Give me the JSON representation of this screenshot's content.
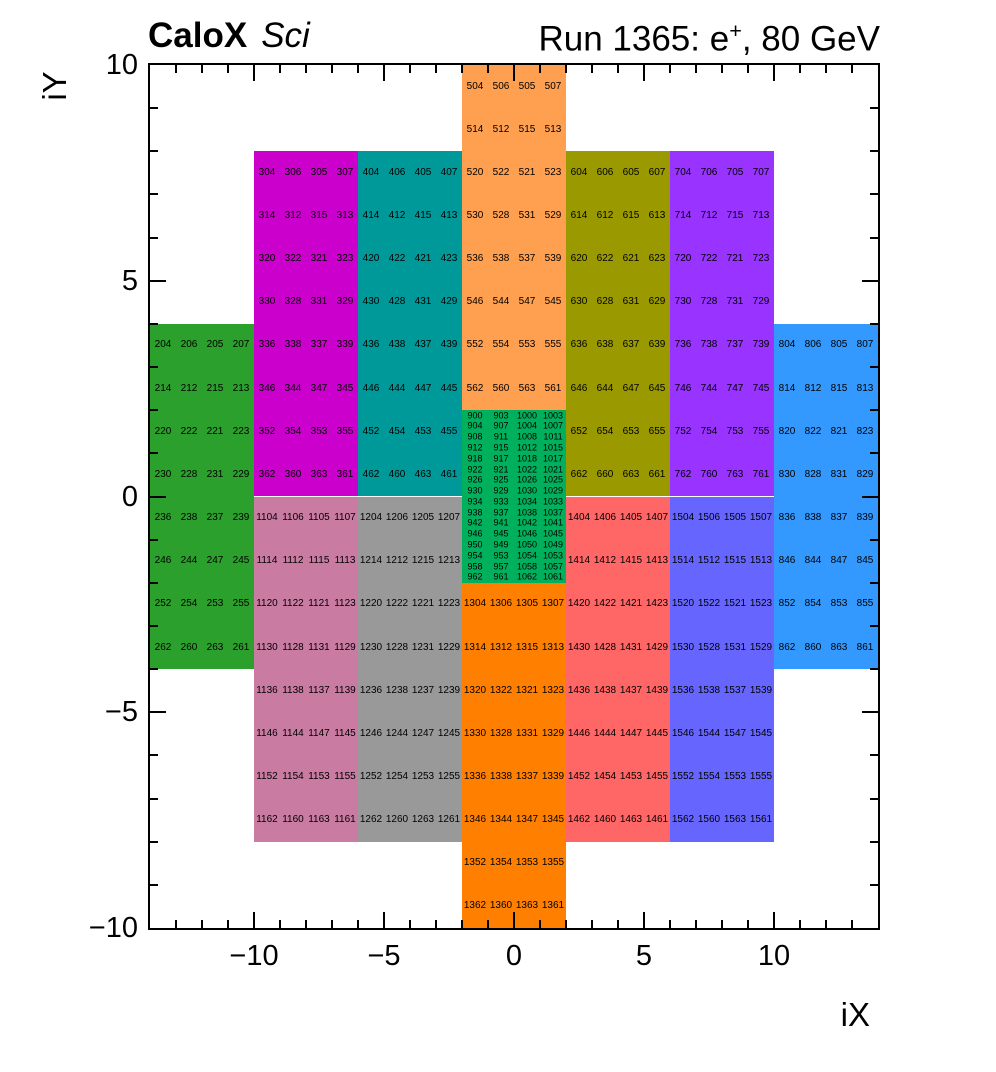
{
  "header": {
    "brand": "CaloX",
    "brand_sub": "Sci",
    "run": {
      "prefix": "Run 1365: e",
      "sup": "+",
      "suffix": ", 80 GeV"
    }
  },
  "chart_data": {
    "type": "heatmap",
    "title": "CaloX Sci — Run 1365: e+, 80 GeV",
    "description": "Calorimeter channel map: colored readout modules on an iX/iY grid, each cell labeled with its channel number",
    "grid": false,
    "x_axis": {
      "title": "iX",
      "range": [
        -14,
        14
      ],
      "major_ticks": [
        -10,
        -5,
        0,
        5,
        10
      ],
      "major_labels": [
        "−10",
        "−5",
        "0",
        "5",
        "10"
      ],
      "minor_step": 1
    },
    "y_axis": {
      "title": "iY",
      "range": [
        -10,
        10
      ],
      "major_ticks": [
        10,
        5,
        0,
        -5,
        -10
      ],
      "major_labels": [
        "10",
        "5",
        "0",
        "−5",
        "−10"
      ],
      "minor_step": 1
    },
    "frame_color": "#000000",
    "modules": [
      {
        "id": "sci-200-green-left",
        "color": "#2ca02c",
        "x": [
          -14,
          -10
        ],
        "y": [
          -4,
          4
        ],
        "cell_rows": [
          [
            "204",
            "206",
            "205",
            "207"
          ],
          [
            "214",
            "212",
            "215",
            "213"
          ],
          [
            "220",
            "222",
            "221",
            "223"
          ],
          [
            "230",
            "228",
            "231",
            "229"
          ],
          [
            "236",
            "238",
            "237",
            "239"
          ],
          [
            "246",
            "244",
            "247",
            "245"
          ],
          [
            "252",
            "254",
            "253",
            "255"
          ],
          [
            "262",
            "260",
            "263",
            "261"
          ]
        ]
      },
      {
        "id": "sci-300-magenta",
        "color": "#cc00cc",
        "x": [
          -10,
          -6
        ],
        "y": [
          0,
          8
        ],
        "cell_rows": [
          [
            "304",
            "306",
            "305",
            "307"
          ],
          [
            "314",
            "312",
            "315",
            "313"
          ],
          [
            "320",
            "322",
            "321",
            "323"
          ],
          [
            "330",
            "328",
            "331",
            "329"
          ],
          [
            "336",
            "338",
            "337",
            "339"
          ],
          [
            "346",
            "344",
            "347",
            "345"
          ],
          [
            "352",
            "354",
            "353",
            "355"
          ],
          [
            "362",
            "360",
            "363",
            "361"
          ]
        ]
      },
      {
        "id": "sci-400-teal",
        "color": "#009999",
        "x": [
          -6,
          -2
        ],
        "y": [
          0,
          8
        ],
        "cell_rows": [
          [
            "404",
            "406",
            "405",
            "407"
          ],
          [
            "414",
            "412",
            "415",
            "413"
          ],
          [
            "420",
            "422",
            "421",
            "423"
          ],
          [
            "430",
            "428",
            "431",
            "429"
          ],
          [
            "436",
            "438",
            "437",
            "439"
          ],
          [
            "446",
            "444",
            "447",
            "445"
          ],
          [
            "452",
            "454",
            "453",
            "455"
          ],
          [
            "462",
            "460",
            "463",
            "461"
          ]
        ]
      },
      {
        "id": "sci-500-orange-top",
        "color": "#ffa050",
        "x": [
          -2,
          2
        ],
        "y": [
          2,
          10
        ],
        "cell_rows": [
          [
            "504",
            "506",
            "505",
            "507"
          ],
          [
            "514",
            "512",
            "515",
            "513"
          ],
          [
            "520",
            "522",
            "521",
            "523"
          ],
          [
            "530",
            "528",
            "531",
            "529"
          ],
          [
            "536",
            "538",
            "537",
            "539"
          ],
          [
            "546",
            "544",
            "547",
            "545"
          ],
          [
            "552",
            "554",
            "553",
            "555"
          ],
          [
            "562",
            "560",
            "563",
            "561"
          ]
        ]
      },
      {
        "id": "sci-600-olive",
        "color": "#9a9a00",
        "x": [
          2,
          6
        ],
        "y": [
          0,
          8
        ],
        "cell_rows": [
          [
            "604",
            "606",
            "605",
            "607"
          ],
          [
            "614",
            "612",
            "615",
            "613"
          ],
          [
            "620",
            "622",
            "621",
            "623"
          ],
          [
            "630",
            "628",
            "631",
            "629"
          ],
          [
            "636",
            "638",
            "637",
            "639"
          ],
          [
            "646",
            "644",
            "647",
            "645"
          ],
          [
            "652",
            "654",
            "653",
            "655"
          ],
          [
            "662",
            "660",
            "663",
            "661"
          ]
        ]
      },
      {
        "id": "sci-700-violet",
        "color": "#9933ff",
        "x": [
          6,
          10
        ],
        "y": [
          0,
          8
        ],
        "cell_rows": [
          [
            "704",
            "706",
            "705",
            "707"
          ],
          [
            "714",
            "712",
            "715",
            "713"
          ],
          [
            "720",
            "722",
            "721",
            "723"
          ],
          [
            "730",
            "728",
            "731",
            "729"
          ],
          [
            "736",
            "738",
            "737",
            "739"
          ],
          [
            "746",
            "744",
            "747",
            "745"
          ],
          [
            "752",
            "754",
            "753",
            "755"
          ],
          [
            "762",
            "760",
            "763",
            "761"
          ]
        ]
      },
      {
        "id": "sci-800-blue-right",
        "color": "#3399ff",
        "x": [
          10,
          14
        ],
        "y": [
          -4,
          4
        ],
        "cell_rows": [
          [
            "804",
            "806",
            "805",
            "807"
          ],
          [
            "814",
            "812",
            "815",
            "813"
          ],
          [
            "820",
            "822",
            "821",
            "823"
          ],
          [
            "830",
            "828",
            "831",
            "829"
          ],
          [
            "836",
            "838",
            "837",
            "839"
          ],
          [
            "846",
            "844",
            "847",
            "845"
          ],
          [
            "852",
            "854",
            "853",
            "855"
          ],
          [
            "862",
            "860",
            "863",
            "861"
          ]
        ]
      },
      {
        "id": "cer-900-center-green",
        "color": "#00b05c",
        "x": [
          -2,
          2
        ],
        "y": [
          -2,
          2
        ],
        "small": true,
        "cell_rows": [
          [
            "900",
            "903",
            "1000",
            "1003"
          ],
          [
            "904",
            "907",
            "1004",
            "1007"
          ],
          [
            "908",
            "911",
            "1008",
            "1011"
          ],
          [
            "912",
            "915",
            "1012",
            "1015"
          ],
          [
            "918",
            "917",
            "1018",
            "1017"
          ],
          [
            "922",
            "921",
            "1022",
            "1021"
          ],
          [
            "926",
            "925",
            "1026",
            "1025"
          ],
          [
            "930",
            "929",
            "1030",
            "1029"
          ],
          [
            "934",
            "933",
            "1034",
            "1033"
          ],
          [
            "938",
            "937",
            "1038",
            "1037"
          ],
          [
            "942",
            "941",
            "1042",
            "1041"
          ],
          [
            "946",
            "945",
            "1046",
            "1045"
          ],
          [
            "950",
            "949",
            "1050",
            "1049"
          ],
          [
            "954",
            "953",
            "1054",
            "1053"
          ],
          [
            "958",
            "957",
            "1058",
            "1057"
          ],
          [
            "962",
            "961",
            "1062",
            "1061"
          ]
        ]
      },
      {
        "id": "sci-1100-mauve",
        "color": "#c97ba1",
        "x": [
          -10,
          -6
        ],
        "y": [
          -8,
          0
        ],
        "cell_rows": [
          [
            "1104",
            "1106",
            "1105",
            "1107"
          ],
          [
            "1114",
            "1112",
            "1115",
            "1113"
          ],
          [
            "1120",
            "1122",
            "1121",
            "1123"
          ],
          [
            "1130",
            "1128",
            "1131",
            "1129"
          ],
          [
            "1136",
            "1138",
            "1137",
            "1139"
          ],
          [
            "1146",
            "1144",
            "1147",
            "1145"
          ],
          [
            "1152",
            "1154",
            "1153",
            "1155"
          ],
          [
            "1162",
            "1160",
            "1163",
            "1161"
          ]
        ]
      },
      {
        "id": "sci-1200-gray",
        "color": "#999999",
        "x": [
          -6,
          -2
        ],
        "y": [
          -8,
          0
        ],
        "cell_rows": [
          [
            "1204",
            "1206",
            "1205",
            "1207"
          ],
          [
            "1214",
            "1212",
            "1215",
            "1213"
          ],
          [
            "1220",
            "1222",
            "1221",
            "1223"
          ],
          [
            "1230",
            "1228",
            "1231",
            "1229"
          ],
          [
            "1236",
            "1238",
            "1237",
            "1239"
          ],
          [
            "1246",
            "1244",
            "1247",
            "1245"
          ],
          [
            "1252",
            "1254",
            "1253",
            "1255"
          ],
          [
            "1262",
            "1260",
            "1263",
            "1261"
          ]
        ]
      },
      {
        "id": "sci-1300-orange-bottom",
        "color": "#ff8000",
        "x": [
          -2,
          2
        ],
        "y": [
          -10,
          -2
        ],
        "cell_rows": [
          [
            "1304",
            "1306",
            "1305",
            "1307"
          ],
          [
            "1314",
            "1312",
            "1315",
            "1313"
          ],
          [
            "1320",
            "1322",
            "1321",
            "1323"
          ],
          [
            "1330",
            "1328",
            "1331",
            "1329"
          ],
          [
            "1336",
            "1338",
            "1337",
            "1339"
          ],
          [
            "1346",
            "1344",
            "1347",
            "1345"
          ],
          [
            "1352",
            "1354",
            "1353",
            "1355"
          ],
          [
            "1362",
            "1360",
            "1363",
            "1361"
          ]
        ]
      },
      {
        "id": "sci-1400-salmon",
        "color": "#ff6666",
        "x": [
          2,
          6
        ],
        "y": [
          -8,
          0
        ],
        "cell_rows": [
          [
            "1404",
            "1406",
            "1405",
            "1407"
          ],
          [
            "1414",
            "1412",
            "1415",
            "1413"
          ],
          [
            "1420",
            "1422",
            "1421",
            "1423"
          ],
          [
            "1430",
            "1428",
            "1431",
            "1429"
          ],
          [
            "1436",
            "1438",
            "1437",
            "1439"
          ],
          [
            "1446",
            "1444",
            "1447",
            "1445"
          ],
          [
            "1452",
            "1454",
            "1453",
            "1455"
          ],
          [
            "1462",
            "1460",
            "1463",
            "1461"
          ]
        ]
      },
      {
        "id": "sci-1500-blueviolet-bottom",
        "color": "#6666ff",
        "x": [
          6,
          10
        ],
        "y": [
          -8,
          0
        ],
        "cell_rows": [
          [
            "1504",
            "1506",
            "1505",
            "1507"
          ],
          [
            "1514",
            "1512",
            "1515",
            "1513"
          ],
          [
            "1520",
            "1522",
            "1521",
            "1523"
          ],
          [
            "1530",
            "1528",
            "1531",
            "1529"
          ],
          [
            "1536",
            "1538",
            "1537",
            "1539"
          ],
          [
            "1546",
            "1544",
            "1547",
            "1545"
          ],
          [
            "1552",
            "1554",
            "1553",
            "1555"
          ],
          [
            "1562",
            "1560",
            "1563",
            "1561"
          ]
        ]
      }
    ]
  }
}
